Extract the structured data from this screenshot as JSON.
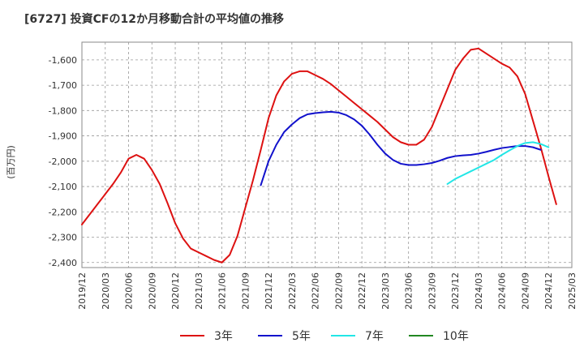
{
  "chart_data": {
    "type": "line",
    "title": "[6727]  投資CFの12か月移動合計の平均値の推移",
    "ylabel": "(百万円)",
    "xlabel": "",
    "ylim": [
      -2420,
      -1530
    ],
    "y_ticks": [
      -2400,
      -2300,
      -2200,
      -2100,
      -2000,
      -1900,
      -1800,
      -1700,
      -1600
    ],
    "y_tick_labels": [
      "-2,400",
      "-2,300",
      "-2,200",
      "-2,100",
      "-2,000",
      "-1,900",
      "-1,800",
      "-1,700",
      "-1,600"
    ],
    "x_tick_labels": [
      "2019/12",
      "2020/03",
      "2020/06",
      "2020/09",
      "2020/12",
      "2021/03",
      "2021/06",
      "2021/09",
      "2021/12",
      "2022/03",
      "2022/06",
      "2022/09",
      "2022/12",
      "2023/03",
      "2023/06",
      "2023/09",
      "2023/12",
      "2024/03",
      "2024/06",
      "2024/09",
      "2024/12",
      "2025/03"
    ],
    "x_start": "2019/12",
    "grid": true,
    "legend_position": "bottom",
    "series": [
      {
        "name": "3年",
        "color": "#dd1111",
        "start": "2019/12",
        "values": [
          -2250,
          -2210,
          -2170,
          -2130,
          -2090,
          -2045,
          -1990,
          -1975,
          -1990,
          -2035,
          -2090,
          -2165,
          -2245,
          -2305,
          -2345,
          -2360,
          -2375,
          -2390,
          -2400,
          -2370,
          -2295,
          -2185,
          -2075,
          -1955,
          -1830,
          -1740,
          -1685,
          -1655,
          -1645,
          -1645,
          -1660,
          -1675,
          -1695,
          -1720,
          -1745,
          -1770,
          -1795,
          -1820,
          -1845,
          -1875,
          -1905,
          -1925,
          -1935,
          -1935,
          -1915,
          -1865,
          -1790,
          -1715,
          -1640,
          -1595,
          -1560,
          -1555,
          -1575,
          -1595,
          -1615,
          -1630,
          -1665,
          -1735,
          -1840,
          -1945,
          -2060,
          -2170
        ]
      },
      {
        "name": "5年",
        "color": "#1111cc",
        "start": "2021/11",
        "values": [
          -2095,
          -2000,
          -1935,
          -1885,
          -1855,
          -1830,
          -1815,
          -1810,
          -1807,
          -1805,
          -1808,
          -1818,
          -1835,
          -1860,
          -1895,
          -1935,
          -1970,
          -1995,
          -2010,
          -2015,
          -2015,
          -2012,
          -2007,
          -1998,
          -1987,
          -1980,
          -1977,
          -1975,
          -1970,
          -1963,
          -1955,
          -1948,
          -1944,
          -1940,
          -1940,
          -1945,
          -1955
        ]
      },
      {
        "name": "7年",
        "color": "#22e6e6",
        "start": "2023/11",
        "values": [
          -2090,
          -2070,
          -2055,
          -2040,
          -2025,
          -2010,
          -1995,
          -1975,
          -1957,
          -1940,
          -1928,
          -1925,
          -1932,
          -1945
        ]
      },
      {
        "name": "10年",
        "color": "#228822",
        "start": "2019/12",
        "values": []
      }
    ]
  }
}
